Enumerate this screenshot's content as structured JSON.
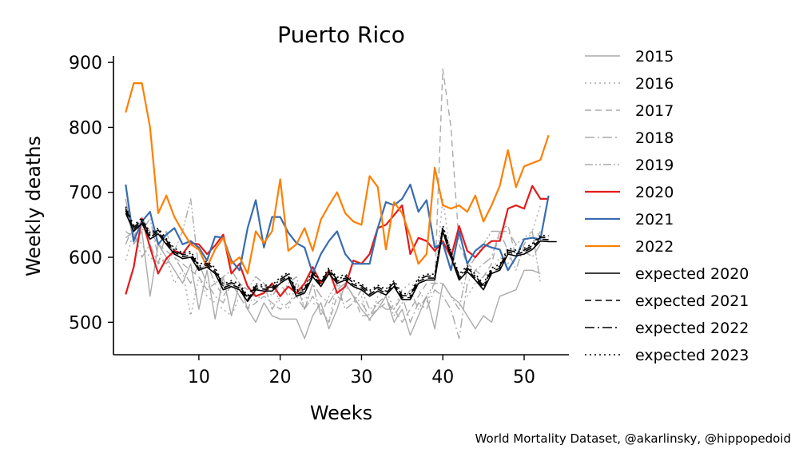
{
  "chart_data": {
    "type": "line",
    "title": "Puerto Rico",
    "xlabel": "Weeks",
    "ylabel": "Weekly deaths",
    "xlim": [
      -0.5,
      55.5
    ],
    "ylim": [
      450,
      910
    ],
    "x_ticks": [
      10,
      20,
      30,
      40,
      50
    ],
    "y_ticks": [
      500,
      600,
      700,
      800,
      900
    ],
    "grid": false,
    "legend_position": "right",
    "credit": "World Mortality Dataset, @akarlinsky, @hippopedoid",
    "colors": {
      "past": "#aaaaaa",
      "2020": "#e31a1c",
      "2021": "#386cb0",
      "2022": "#ff7f00",
      "expected": "#000000"
    },
    "series": [
      {
        "name": "2015",
        "style": "solid",
        "color": "#aaaaaa",
        "width": 1.4,
        "values": [
          690,
          620,
          640,
          540,
          620,
          600,
          580,
          560,
          590,
          520,
          580,
          505,
          570,
          510,
          560,
          520,
          500,
          530,
          510,
          505,
          505,
          505,
          475,
          510,
          530,
          490,
          520,
          560,
          540,
          520,
          505,
          520,
          540,
          500,
          520,
          480,
          510,
          540,
          490,
          560,
          540,
          530,
          510,
          490,
          510,
          500,
          540,
          545,
          550,
          580,
          580,
          575
        ]
      },
      {
        "name": "2016",
        "style": "dotted",
        "color": "#aaaaaa",
        "width": 1.4,
        "values": [
          595,
          640,
          620,
          600,
          590,
          600,
          560,
          580,
          510,
          570,
          540,
          530,
          520,
          510,
          540,
          560,
          530,
          550,
          560,
          530,
          520,
          560,
          540,
          530,
          520,
          500,
          560,
          550,
          560,
          540,
          500,
          540,
          550,
          520,
          550,
          560,
          550,
          530,
          560,
          690,
          600,
          570,
          540,
          560,
          570,
          580,
          600,
          590,
          620,
          630,
          640,
          680
        ]
      },
      {
        "name": "2017",
        "style": "dashed",
        "color": "#aaaaaa",
        "width": 1.4,
        "values": [
          640,
          630,
          660,
          640,
          620,
          610,
          600,
          590,
          580,
          570,
          550,
          560,
          540,
          560,
          540,
          520,
          530,
          540,
          530,
          520,
          530,
          540,
          520,
          540,
          520,
          500,
          540,
          530,
          540,
          510,
          510,
          520,
          530,
          520,
          500,
          520,
          540,
          560,
          560,
          890,
          800,
          620,
          590,
          580,
          570,
          590,
          640,
          650,
          600,
          610,
          620,
          640
        ]
      },
      {
        "name": "2018",
        "style": "dashdot",
        "color": "#aaaaaa",
        "width": 1.4,
        "values": [
          630,
          640,
          600,
          620,
          590,
          640,
          600,
          580,
          560,
          590,
          560,
          540,
          530,
          560,
          540,
          520,
          550,
          560,
          540,
          560,
          540,
          560,
          520,
          560,
          540,
          530,
          550,
          560,
          540,
          530,
          510,
          530,
          520,
          520,
          540,
          500,
          530,
          520,
          550,
          540,
          520,
          475,
          560,
          580,
          590,
          600,
          640,
          640,
          620,
          610,
          600,
          620
        ]
      },
      {
        "name": "2019",
        "style": "dashdotdot",
        "color": "#aaaaaa",
        "width": 1.4,
        "values": [
          620,
          650,
          640,
          660,
          600,
          590,
          610,
          640,
          690,
          580,
          590,
          560,
          570,
          580,
          560,
          550,
          570,
          560,
          520,
          540,
          560,
          570,
          520,
          560,
          510,
          540,
          560,
          520,
          530,
          550,
          520,
          530,
          540,
          510,
          530,
          550,
          520,
          540,
          560,
          560,
          540,
          520,
          580,
          600,
          620,
          640,
          640,
          610,
          580,
          620,
          640,
          560
        ]
      },
      {
        "name": "2020",
        "style": "solid",
        "color": "#e31a1c",
        "width": 2.2,
        "values": [
          543,
          585,
          660,
          615,
          575,
          598,
          610,
          605,
          622,
          620,
          605,
          618,
          635,
          575,
          590,
          555,
          540,
          545,
          560,
          540,
          555,
          545,
          560,
          585,
          560,
          580,
          545,
          555,
          595,
          590,
          605,
          645,
          650,
          665,
          680,
          605,
          630,
          625,
          610,
          625,
          600,
          648,
          610,
          600,
          615,
          625,
          625,
          675,
          680,
          675,
          710,
          690,
          690
        ]
      },
      {
        "name": "2021",
        "style": "solid",
        "color": "#386cb0",
        "width": 2.2,
        "values": [
          712,
          625,
          655,
          670,
          620,
          635,
          645,
          620,
          625,
          615,
          595,
          632,
          630,
          595,
          580,
          645,
          688,
          615,
          662,
          662,
          638,
          622,
          615,
          575,
          605,
          625,
          640,
          605,
          590,
          590,
          590,
          645,
          685,
          680,
          690,
          712,
          670,
          688,
          615,
          622,
          580,
          640,
          590,
          610,
          620,
          615,
          612,
          580,
          600,
          628,
          630,
          628,
          695
        ]
      },
      {
        "name": "2022",
        "style": "solid",
        "color": "#ff7f00",
        "width": 2.2,
        "values": [
          823,
          868,
          868,
          800,
          668,
          695,
          662,
          640,
          620,
          612,
          585,
          612,
          630,
          590,
          600,
          575,
          640,
          622,
          640,
          720,
          610,
          620,
          645,
          610,
          658,
          680,
          700,
          668,
          655,
          650,
          725,
          708,
          612,
          685,
          668,
          632,
          590,
          605,
          738,
          680,
          675,
          680,
          670,
          695,
          655,
          680,
          710,
          765,
          708,
          740,
          745,
          750,
          788
        ]
      },
      {
        "name": "expected 2020",
        "style": "solid",
        "color": "#000000",
        "width": 1.6,
        "values": [
          668,
          640,
          652,
          628,
          636,
          620,
          605,
          598,
          600,
          580,
          585,
          575,
          550,
          555,
          550,
          532,
          550,
          548,
          548,
          560,
          568,
          540,
          545,
          570,
          555,
          575,
          560,
          565,
          555,
          550,
          540,
          548,
          542,
          555,
          535,
          535,
          560,
          565,
          565,
          640,
          600,
          565,
          578,
          565,
          550,
          575,
          580,
          605,
          602,
          605,
          612,
          625,
          624,
          624
        ]
      },
      {
        "name": "expected 2021",
        "style": "dashed",
        "color": "#000000",
        "width": 1.6,
        "values": [
          672,
          643,
          655,
          631,
          639,
          623,
          608,
          601,
          603,
          583,
          588,
          578,
          553,
          558,
          553,
          535,
          553,
          551,
          551,
          563,
          571,
          543,
          548,
          573,
          558,
          578,
          563,
          568,
          558,
          553,
          543,
          551,
          545,
          558,
          538,
          538,
          563,
          568,
          568,
          643,
          603,
          568,
          581,
          568,
          553,
          578,
          583,
          608,
          605,
          608,
          615,
          628,
          627
        ]
      },
      {
        "name": "expected 2022",
        "style": "dashdot",
        "color": "#000000",
        "width": 1.6,
        "values": [
          675,
          646,
          658,
          634,
          642,
          626,
          611,
          604,
          606,
          586,
          591,
          581,
          556,
          561,
          556,
          538,
          556,
          554,
          554,
          566,
          574,
          546,
          551,
          576,
          561,
          581,
          566,
          571,
          561,
          556,
          546,
          554,
          548,
          561,
          541,
          541,
          566,
          571,
          571,
          646,
          606,
          571,
          584,
          571,
          556,
          581,
          586,
          611,
          608,
          611,
          618,
          631,
          630
        ]
      },
      {
        "name": "expected 2023",
        "style": "dotted",
        "color": "#000000",
        "width": 1.6,
        "values": [
          678,
          649,
          661,
          637,
          645,
          629,
          614,
          607,
          609,
          589,
          594,
          584,
          559,
          564,
          559,
          541,
          559,
          557,
          557,
          569,
          577,
          549,
          554,
          579,
          564,
          584,
          569,
          574,
          564,
          559,
          549,
          557,
          551,
          564,
          544,
          544,
          569,
          574,
          574,
          649,
          609,
          574,
          587,
          574,
          559,
          584,
          589,
          614,
          611,
          614,
          621,
          634,
          633
        ]
      }
    ]
  }
}
